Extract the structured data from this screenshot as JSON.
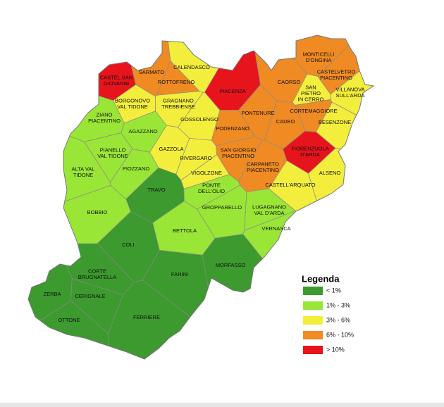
{
  "legend": {
    "title": "Legenda",
    "items": [
      {
        "label": "< 1%",
        "color": "#3c9a2e"
      },
      {
        "label": "1% - 3%",
        "color": "#9ae636"
      },
      {
        "label": "3% - 6%",
        "color": "#f3ee3c"
      },
      {
        "label": "6% - 10%",
        "color": "#f08a22"
      },
      {
        "label": "> 10%",
        "color": "#e8141c"
      }
    ]
  },
  "municipalities": [
    {
      "name": [
        "CASTEL SAN",
        "GIOVANNI"
      ],
      "color": "#e8141c"
    },
    {
      "name": [
        "SARMATO"
      ],
      "color": "#f08a22"
    },
    {
      "name": [
        "CALENDASCO"
      ],
      "color": "#f3ee3c"
    },
    {
      "name": [
        "ROTTOFRENO"
      ],
      "color": "#f08a22"
    },
    {
      "name": [
        "PIACENZA"
      ],
      "color": "#e8141c"
    },
    {
      "name": [
        "CAORSO"
      ],
      "color": "#f08a22"
    },
    {
      "name": [
        "MONTICELLI",
        "D'ONGINA"
      ],
      "color": "#f08a22"
    },
    {
      "name": [
        "CASTELVETRO",
        "PIACENTINO"
      ],
      "color": "#f08a22"
    },
    {
      "name": [
        "SAN",
        "PIETRO",
        "IN CERRO"
      ],
      "color": "#f3ee3c"
    },
    {
      "name": [
        "VILLANOVA",
        "SULL'ARDA"
      ],
      "color": "#f3ee3c"
    },
    {
      "name": [
        "BORGONOVO",
        "VAL TIDONE"
      ],
      "color": "#f3ee3c"
    },
    {
      "name": [
        "GRAGNANO",
        "TREBBIENSE"
      ],
      "color": "#f3ee3c"
    },
    {
      "name": [
        "PONTENURE"
      ],
      "color": "#f08a22"
    },
    {
      "name": [
        "CORTEMAGGIORE"
      ],
      "color": "#f08a22"
    },
    {
      "name": [
        "CADEO"
      ],
      "color": "#f08a22"
    },
    {
      "name": [
        "BESENZONE"
      ],
      "color": "#f3ee3c"
    },
    {
      "name": [
        "GOSSOLENGO"
      ],
      "color": "#f3ee3c"
    },
    {
      "name": [
        "ZIANO",
        "PIACENTINO"
      ],
      "color": "#9ae636"
    },
    {
      "name": [
        "PODENZANO"
      ],
      "color": "#f08a22"
    },
    {
      "name": [
        "AGAZZANO"
      ],
      "color": "#9ae636"
    },
    {
      "name": [
        "GAZZOLA"
      ],
      "color": "#f3ee3c"
    },
    {
      "name": [
        "RIVERGARO"
      ],
      "color": "#f3ee3c"
    },
    {
      "name": [
        "SAN GIORGIO",
        "PIACENTINO"
      ],
      "color": "#f08a22"
    },
    {
      "name": [
        "FIORENZUOLA",
        "D'ARDA"
      ],
      "color": "#e8141c"
    },
    {
      "name": [
        "PIANELLO",
        "VAL TIDONE"
      ],
      "color": "#9ae636"
    },
    {
      "name": [
        "CARPANETO",
        "PIACENTINO"
      ],
      "color": "#f08a22"
    },
    {
      "name": [
        "ALTA VAL",
        "TIDONE"
      ],
      "color": "#9ae636"
    },
    {
      "name": [
        "PIOZZANO"
      ],
      "color": "#9ae636"
    },
    {
      "name": [
        "VIGOLZONE"
      ],
      "color": "#f3ee3c"
    },
    {
      "name": [
        "ALSENO"
      ],
      "color": "#f3ee3c"
    },
    {
      "name": [
        "TRAVO"
      ],
      "color": "#3c9a2e"
    },
    {
      "name": [
        "PONTE",
        "DELL'OLIO"
      ],
      "color": "#9ae636"
    },
    {
      "name": [
        "CASTELL'ARQUATO"
      ],
      "color": "#f3ee3c"
    },
    {
      "name": [
        "GROPPARELLO"
      ],
      "color": "#9ae636"
    },
    {
      "name": [
        "LUGAGNANO",
        "VAL D'ARDA"
      ],
      "color": "#9ae636"
    },
    {
      "name": [
        "BOBBIO"
      ],
      "color": "#9ae636"
    },
    {
      "name": [
        "BETTOLA"
      ],
      "color": "#9ae636"
    },
    {
      "name": [
        "VERNASCA"
      ],
      "color": "#9ae636"
    },
    {
      "name": [
        "COLI"
      ],
      "color": "#3c9a2e"
    },
    {
      "name": [
        "MORFASSO"
      ],
      "color": "#3c9a2e"
    },
    {
      "name": [
        "CORTE",
        "BRUGNATELLA"
      ],
      "color": "#3c9a2e"
    },
    {
      "name": [
        "FARINI"
      ],
      "color": "#3c9a2e"
    },
    {
      "name": [
        "ZERBA"
      ],
      "color": "#3c9a2e"
    },
    {
      "name": [
        "CERIGNALE"
      ],
      "color": "#3c9a2e"
    },
    {
      "name": [
        "OTTONE"
      ],
      "color": "#3c9a2e"
    },
    {
      "name": [
        "FERRIERE"
      ],
      "color": "#3c9a2e"
    }
  ]
}
